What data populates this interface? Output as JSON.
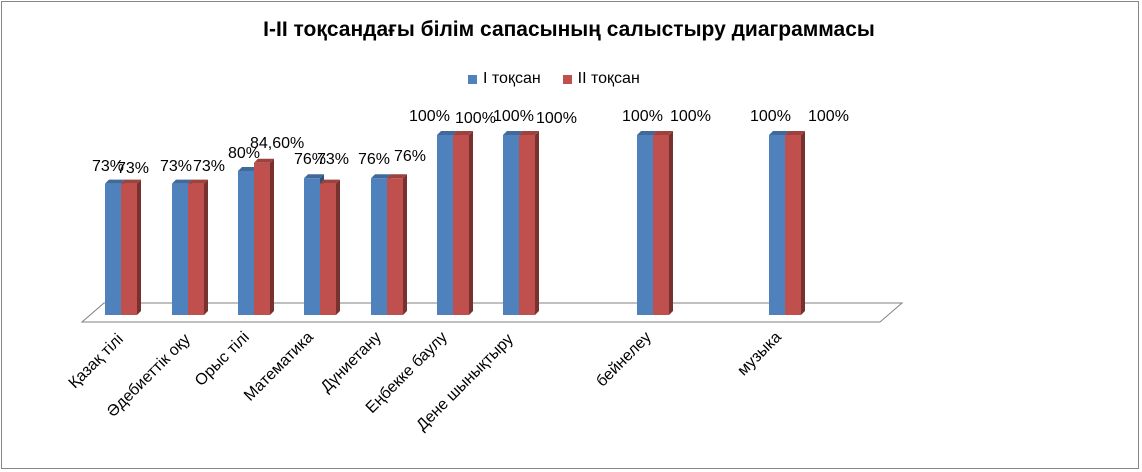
{
  "chart_data": {
    "type": "bar",
    "title": "І-ІІ тоқсандағы білім сапасының салыстыру диаграммасы",
    "categories": [
      "Қазақ тілі",
      "Әдебиеттік оқу",
      "Орыс тілі",
      "Математика",
      "Дүниетану",
      "Еңбекке баулу",
      "Дене шынықтыру",
      "бейнелеу",
      "музыка"
    ],
    "series": [
      {
        "name": "І тоқсан",
        "color": "#4F81BD",
        "values": [
          73,
          73,
          80,
          76,
          76,
          100,
          100,
          100,
          100
        ],
        "labels": [
          "73%",
          "73%",
          "80%",
          "76%",
          "76%",
          "100%",
          "100%",
          "100%",
          "100%"
        ]
      },
      {
        "name": "ІІ тоқсан",
        "color": "#C0504D",
        "values": [
          73,
          73,
          84.6,
          73,
          76,
          100,
          100,
          100,
          100
        ],
        "labels": [
          "73%",
          "73%",
          "84,60%",
          "73%",
          "76%",
          "100%",
          "100%",
          "100%",
          "100%"
        ]
      }
    ],
    "ylim": [
      0,
      100
    ],
    "grid": false,
    "legend_position": "top"
  }
}
